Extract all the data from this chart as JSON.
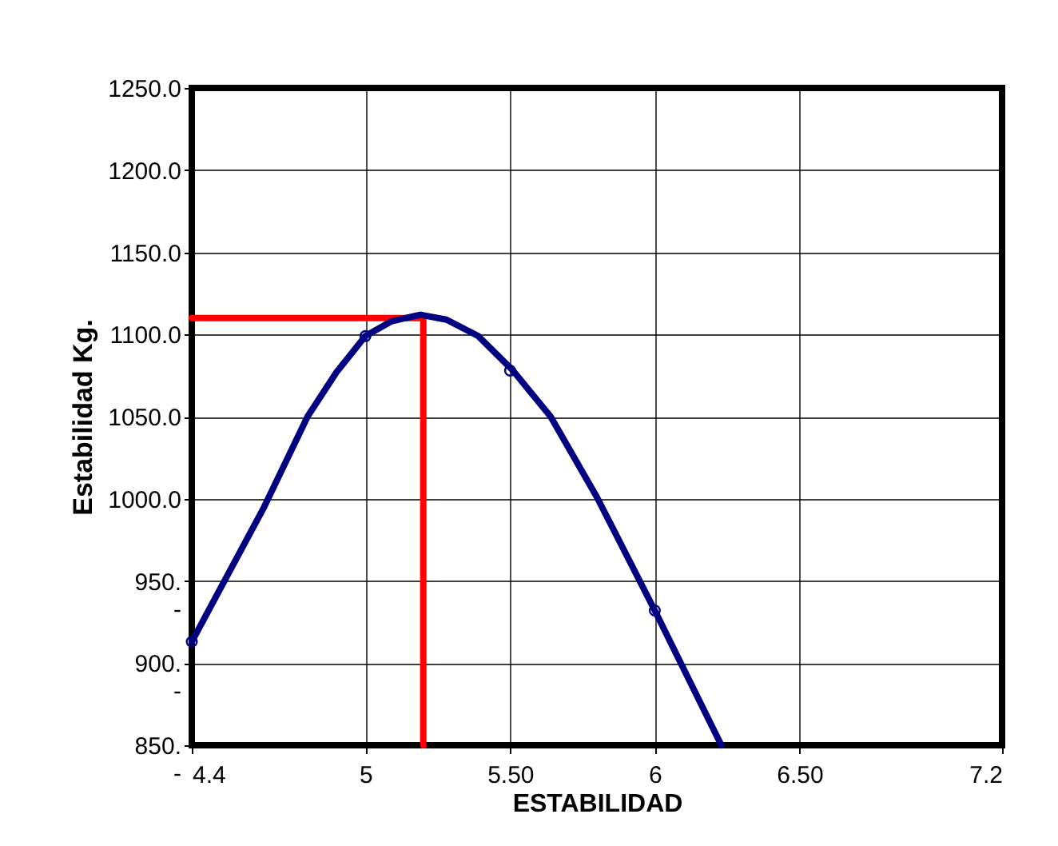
{
  "chart_data": {
    "type": "line",
    "xlabel": "ESTABILIDAD",
    "ylabel": "Estabilidad  Kg.",
    "xlim": [
      4.4,
      7.2
    ],
    "xticks": [
      4.4,
      5,
      {
        "value": 5.5,
        "label": "5.50"
      },
      6,
      {
        "value": 6.5,
        "label": "6.50"
      },
      7.2
    ],
    "ylim": [
      850,
      1250
    ],
    "yticks": [
      {
        "value": 850,
        "label": "850.\n-"
      },
      {
        "value": 900,
        "label": "900.\n-"
      },
      {
        "value": 950,
        "label": "950.\n-"
      },
      {
        "value": 1000,
        "label": "1000.0"
      },
      {
        "value": 1050,
        "label": "1050.0"
      },
      {
        "value": 1100,
        "label": "1100.0"
      },
      {
        "value": 1150,
        "label": "1150.0"
      },
      {
        "value": 1200,
        "label": "1200.0"
      },
      {
        "value": 1250,
        "label": "1250.0"
      }
    ],
    "grid": true,
    "series": [
      {
        "color": "#ff0000",
        "marker": "none",
        "x": [
          4.4,
          5.2,
          5.2
        ],
        "values": [
          1110,
          1110,
          850
        ]
      },
      {
        "color": "#000080",
        "marker": "none",
        "x": [
          4.4,
          4.65,
          4.8,
          4.9,
          5.0,
          5.09,
          5.19,
          5.28,
          5.39,
          5.51,
          5.64,
          5.8,
          6.0,
          6.23
        ],
        "values": [
          913,
          995,
          1050,
          1077,
          1099,
          1108,
          1112,
          1109,
          1099,
          1078,
          1050,
          1001,
          932,
          850
        ]
      },
      {
        "type": "scatter",
        "color": "#000080",
        "marker": "circle",
        "x": [
          4.4,
          5,
          5.5,
          6
        ],
        "values": [
          913,
          1099,
          1078,
          932
        ]
      }
    ]
  }
}
